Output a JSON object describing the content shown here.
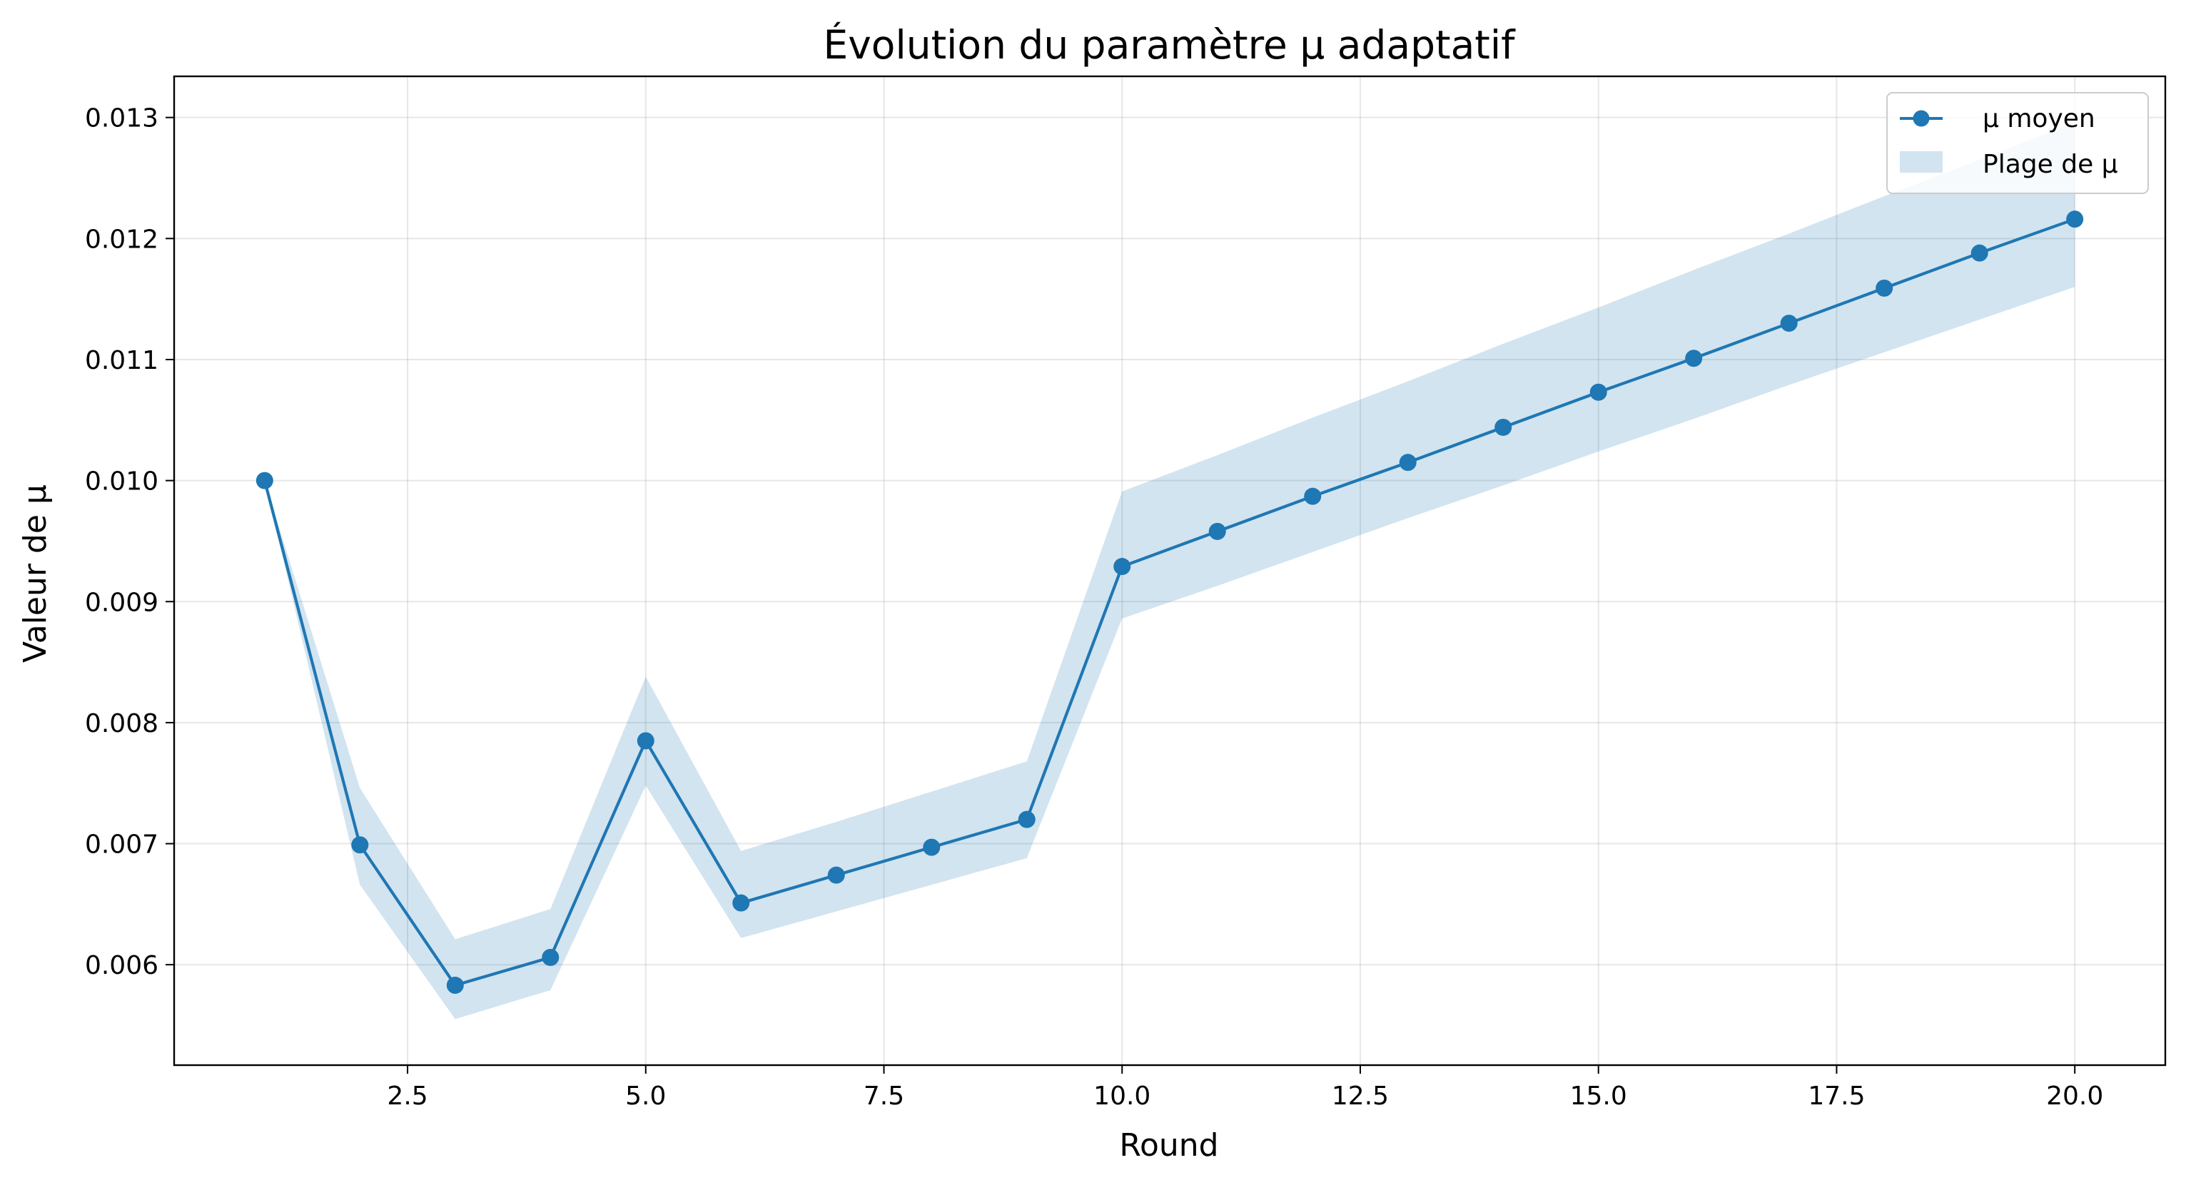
{
  "chart_data": {
    "type": "line",
    "title": "Évolution du paramètre μ adaptatif",
    "xlabel": "Round",
    "ylabel": "Valeur de μ",
    "xlim": [
      0.05,
      20.95
    ],
    "ylim": [
      0.00517,
      0.01334
    ],
    "xticks": [
      2.5,
      5.0,
      7.5,
      10.0,
      12.5,
      15.0,
      17.5,
      20.0
    ],
    "xtick_labels": [
      "2.5",
      "5.0",
      "7.5",
      "10.0",
      "12.5",
      "15.0",
      "17.5",
      "20.0"
    ],
    "yticks": [
      0.006,
      0.007,
      0.008,
      0.009,
      0.01,
      0.011,
      0.012,
      0.013
    ],
    "ytick_labels": [
      "0.006",
      "0.007",
      "0.008",
      "0.009",
      "0.010",
      "0.011",
      "0.012",
      "0.013"
    ],
    "grid": true,
    "legend_position": "top-right",
    "x": [
      1,
      2,
      3,
      4,
      5,
      6,
      7,
      8,
      9,
      10,
      11,
      12,
      13,
      14,
      15,
      16,
      17,
      18,
      19,
      20
    ],
    "series": [
      {
        "name": "μ moyen",
        "kind": "line-marker",
        "color": "#1f77b4",
        "values": [
          0.01,
          0.00699,
          0.00583,
          0.00606,
          0.00785,
          0.00651,
          0.00674,
          0.00697,
          0.0072,
          0.00929,
          0.00958,
          0.00987,
          0.01015,
          0.01044,
          0.01073,
          0.01101,
          0.0113,
          0.01159,
          0.01188,
          0.01216
        ]
      },
      {
        "name": "Plage de μ",
        "kind": "band",
        "color": "#1f77b4",
        "opacity": 0.2,
        "lower": [
          0.01,
          0.00666,
          0.00555,
          0.00579,
          0.00748,
          0.00622,
          0.00644,
          0.00666,
          0.00688,
          0.00886,
          0.00913,
          0.00941,
          0.00969,
          0.00996,
          0.01024,
          0.01051,
          0.01079,
          0.01106,
          0.01133,
          0.0116
        ],
        "upper": [
          0.01,
          0.00746,
          0.00621,
          0.00646,
          0.00838,
          0.00694,
          0.00718,
          0.00743,
          0.00768,
          0.00991,
          0.01021,
          0.01052,
          0.01082,
          0.01113,
          0.01143,
          0.01174,
          0.01204,
          0.01235,
          0.01265,
          0.01296
        ]
      }
    ]
  }
}
